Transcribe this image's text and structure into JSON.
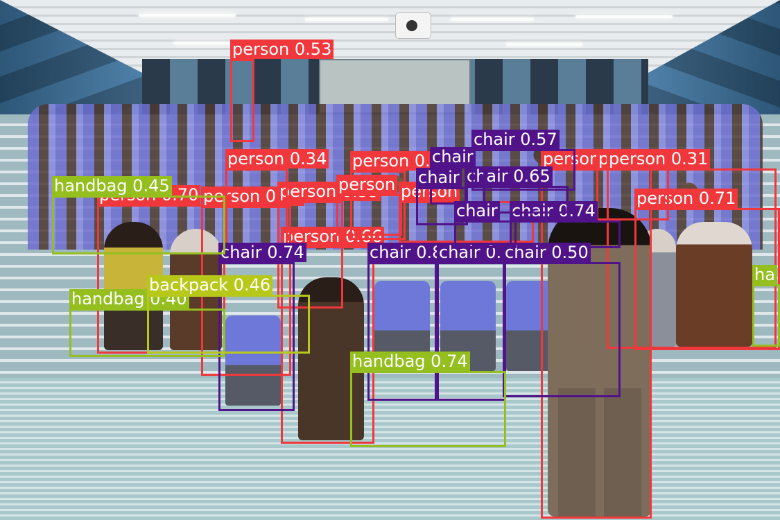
{
  "classes": {
    "person": {
      "color": "#f0383c"
    },
    "chair": {
      "color": "#51138a"
    },
    "handbag": {
      "color": "#94bf1f"
    },
    "backpack": {
      "color": "#b8c81b"
    }
  },
  "detections": [
    {
      "cls": "person",
      "label": "person 0.93"
    },
    {
      "cls": "person",
      "label": "person 0.71"
    },
    {
      "cls": "person",
      "label": "person 0.70"
    },
    {
      "cls": "person",
      "label": "person 0.66"
    },
    {
      "cls": "person",
      "label": "person 0.56"
    },
    {
      "cls": "person",
      "label": "person 0.53"
    },
    {
      "cls": "person",
      "label": "person 0.45"
    },
    {
      "cls": "person",
      "label": "person 0.35"
    },
    {
      "cls": "person",
      "label": "person 0.34"
    },
    {
      "cls": "person",
      "label": "person 0.33"
    },
    {
      "cls": "person",
      "label": "person 0.31"
    },
    {
      "cls": "person",
      "label": "person"
    },
    {
      "cls": "person",
      "label": "person"
    },
    {
      "cls": "chair",
      "label": "chair 0.80"
    },
    {
      "cls": "chair",
      "label": "chair 0.79"
    },
    {
      "cls": "chair",
      "label": "chair 0.74"
    },
    {
      "cls": "chair",
      "label": "chair 0.74"
    },
    {
      "cls": "chair",
      "label": "chair 0.65"
    },
    {
      "cls": "chair",
      "label": "chair 0.57"
    },
    {
      "cls": "chair",
      "label": "chair 0.50"
    },
    {
      "cls": "chair",
      "label": "chair"
    },
    {
      "cls": "chair",
      "label": "chair"
    },
    {
      "cls": "chair",
      "label": "chair"
    },
    {
      "cls": "handbag",
      "label": "handbag 0.74"
    },
    {
      "cls": "handbag",
      "label": "handbag 0.45"
    },
    {
      "cls": "handbag",
      "label": "handbag 0.40"
    },
    {
      "cls": "handbag",
      "label": "ha"
    },
    {
      "cls": "backpack",
      "label": "backpack 0.46"
    }
  ]
}
